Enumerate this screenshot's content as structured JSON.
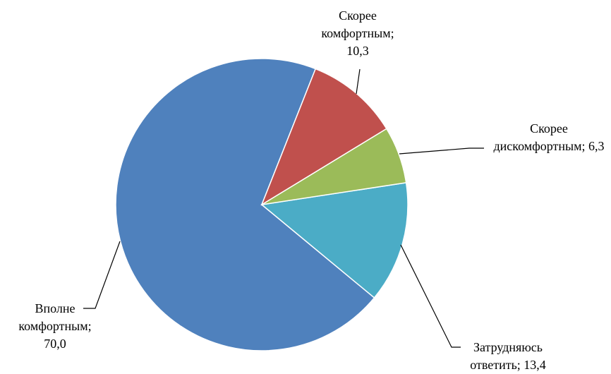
{
  "chart_data": {
    "type": "pie",
    "categories": [
      "Скорее комфортным",
      "Скорее дискомфортным",
      "Затрудняюсь ответить",
      "Вполне комфортным"
    ],
    "values": [
      10.3,
      6.3,
      13.4,
      70.0
    ],
    "value_labels": [
      "10,3",
      "6,3",
      "13,4",
      "70,0"
    ],
    "label_separator": "; ",
    "colors": [
      "#c0504d",
      "#9bbb59",
      "#4bacc6",
      "#4f81bd"
    ]
  }
}
